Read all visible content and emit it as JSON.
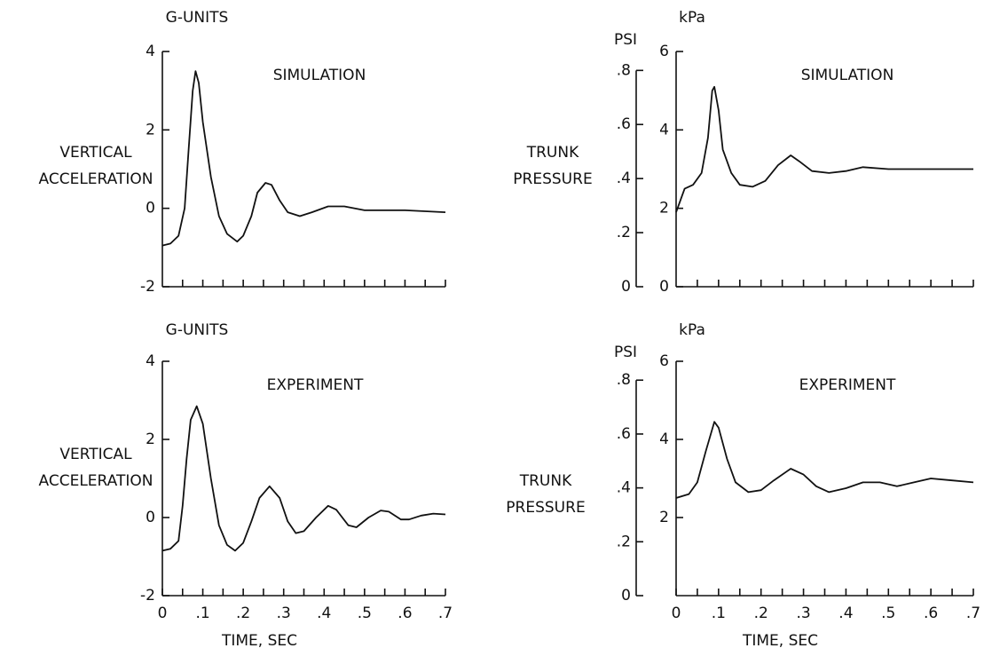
{
  "chart_data": [
    {
      "type": "line",
      "title": "SIMULATION",
      "yunit": "G-UNITS",
      "ylabel": [
        "VERTICAL",
        "ACCELERATION"
      ],
      "color": "#111111",
      "x": [
        0,
        0.02,
        0.04,
        0.055,
        0.065,
        0.075,
        0.082,
        0.09,
        0.1,
        0.12,
        0.14,
        0.16,
        0.185,
        0.2,
        0.22,
        0.235,
        0.255,
        0.27,
        0.29,
        0.31,
        0.34,
        0.37,
        0.41,
        0.45,
        0.5,
        0.6,
        0.7
      ],
      "values": [
        -0.95,
        -0.9,
        -0.7,
        0.0,
        1.5,
        3.0,
        3.5,
        3.2,
        2.2,
        0.8,
        -0.2,
        -0.65,
        -0.85,
        -0.7,
        -0.2,
        0.4,
        0.65,
        0.6,
        0.2,
        -0.1,
        -0.2,
        -0.1,
        0.05,
        0.05,
        -0.05,
        -0.05,
        -0.1
      ],
      "xlim": [
        0,
        0.7
      ],
      "ylim": [
        -2,
        4
      ],
      "yticks": [
        -2,
        0,
        2,
        4
      ],
      "xminor_ticks": [
        0.05,
        0.1,
        0.15,
        0.2,
        0.25,
        0.3,
        0.35,
        0.4,
        0.45,
        0.5,
        0.55,
        0.6,
        0.65,
        0.7
      ]
    },
    {
      "type": "line",
      "title": "EXPERIMENT",
      "yunit": "G-UNITS",
      "ylabel": [
        "VERTICAL",
        "ACCELERATION"
      ],
      "xlabel": "TIME, SEC",
      "color": "#111111",
      "x": [
        0,
        0.02,
        0.04,
        0.05,
        0.06,
        0.07,
        0.085,
        0.1,
        0.12,
        0.14,
        0.16,
        0.18,
        0.2,
        0.22,
        0.24,
        0.265,
        0.29,
        0.31,
        0.33,
        0.35,
        0.38,
        0.41,
        0.43,
        0.46,
        0.48,
        0.51,
        0.54,
        0.56,
        0.59,
        0.61,
        0.64,
        0.67,
        0.7
      ],
      "values": [
        -0.85,
        -0.8,
        -0.6,
        0.3,
        1.5,
        2.5,
        2.85,
        2.4,
        1.0,
        -0.2,
        -0.7,
        -0.85,
        -0.65,
        -0.1,
        0.5,
        0.8,
        0.5,
        -0.1,
        -0.4,
        -0.35,
        0.0,
        0.3,
        0.2,
        -0.2,
        -0.25,
        0.0,
        0.18,
        0.15,
        -0.05,
        -0.05,
        0.05,
        0.1,
        0.08
      ],
      "xlim": [
        0,
        0.7
      ],
      "ylim": [
        -2,
        4
      ],
      "yticks": [
        -2,
        0,
        2,
        4
      ],
      "xticks": [
        0,
        {
          "value": 0.1,
          "label": ".1"
        },
        {
          "value": 0.2,
          "label": ".2"
        },
        {
          "value": 0.3,
          "label": ".3"
        },
        {
          "value": 0.4,
          "label": ".4"
        },
        {
          "value": 0.5,
          "label": ".5"
        },
        {
          "value": 0.6,
          "label": ".6"
        },
        {
          "value": 0.7,
          "label": ".7"
        }
      ],
      "xminor_ticks": [
        0.05,
        0.15,
        0.25,
        0.35,
        0.45,
        0.55,
        0.65
      ]
    },
    {
      "type": "line",
      "title": "SIMULATION",
      "yunit": "kPa",
      "y2unit": "PSI",
      "ylabel": [
        "TRUNK",
        "PRESSURE"
      ],
      "color": "#111111",
      "x": [
        0,
        0.01,
        0.02,
        0.04,
        0.06,
        0.075,
        0.085,
        0.09,
        0.1,
        0.11,
        0.13,
        0.15,
        0.18,
        0.21,
        0.24,
        0.27,
        0.29,
        0.32,
        0.36,
        0.4,
        0.44,
        0.5,
        0.6,
        0.7
      ],
      "values": [
        1.9,
        2.2,
        2.5,
        2.6,
        2.9,
        3.8,
        5.0,
        5.1,
        4.5,
        3.5,
        2.9,
        2.6,
        2.55,
        2.7,
        3.1,
        3.35,
        3.2,
        2.95,
        2.9,
        2.95,
        3.05,
        3.0,
        3.0,
        3.0
      ],
      "xlim": [
        0,
        0.7
      ],
      "ylim": [
        0,
        6
      ],
      "yticks": [
        0,
        2,
        4,
        6
      ],
      "y2lim": [
        0,
        0.87
      ],
      "y2ticks": [
        0,
        {
          "value": 0.2,
          "label": ".2"
        },
        {
          "value": 0.4,
          "label": ".4"
        },
        {
          "value": 0.6,
          "label": ".6"
        },
        {
          "value": 0.8,
          "label": ".8"
        }
      ],
      "xminor_ticks": [
        0.05,
        0.1,
        0.15,
        0.2,
        0.25,
        0.3,
        0.35,
        0.4,
        0.45,
        0.5,
        0.55,
        0.6,
        0.65,
        0.7
      ]
    },
    {
      "type": "line",
      "title": "EXPERIMENT",
      "yunit": "kPa",
      "y2unit": "PSI",
      "ylabel": [
        "TRUNK",
        "PRESSURE"
      ],
      "xlabel": "TIME, SEC",
      "color": "#111111",
      "x": [
        0,
        0.03,
        0.05,
        0.07,
        0.09,
        0.1,
        0.12,
        0.14,
        0.17,
        0.2,
        0.23,
        0.27,
        0.3,
        0.33,
        0.36,
        0.4,
        0.44,
        0.48,
        0.52,
        0.56,
        0.6,
        0.65,
        0.7
      ],
      "values": [
        2.5,
        2.6,
        2.9,
        3.7,
        4.45,
        4.3,
        3.5,
        2.9,
        2.65,
        2.7,
        2.95,
        3.25,
        3.1,
        2.8,
        2.65,
        2.75,
        2.9,
        2.9,
        2.8,
        2.9,
        3.0,
        2.95,
        2.9
      ],
      "xlim": [
        0,
        0.7
      ],
      "ylim": [
        0,
        6
      ],
      "yticks": [
        2,
        4,
        6
      ],
      "y2lim": [
        0,
        0.87
      ],
      "y2ticks": [
        0,
        {
          "value": 0.2,
          "label": ".2"
        },
        {
          "value": 0.4,
          "label": ".4"
        },
        {
          "value": 0.6,
          "label": ".6"
        },
        {
          "value": 0.8,
          "label": ".8"
        }
      ],
      "xticks": [
        0,
        {
          "value": 0.1,
          "label": ".1"
        },
        {
          "value": 0.2,
          "label": ".2"
        },
        {
          "value": 0.3,
          "label": ".3"
        },
        {
          "value": 0.4,
          "label": ".4"
        },
        {
          "value": 0.5,
          "label": ".5"
        },
        {
          "value": 0.6,
          "label": ".6"
        },
        {
          "value": 0.7,
          "label": ".7"
        }
      ],
      "xminor_ticks": [
        0.05,
        0.15,
        0.25,
        0.35,
        0.45,
        0.55,
        0.65
      ]
    }
  ]
}
